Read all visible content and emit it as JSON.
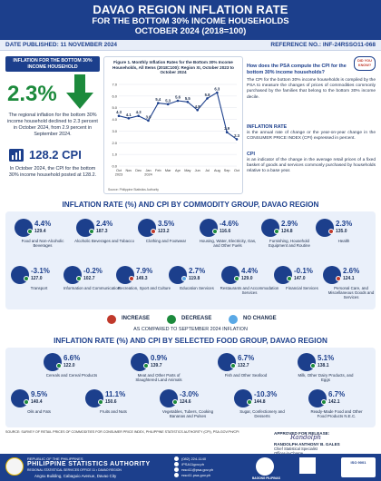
{
  "header": {
    "title": "DAVAO REGION INFLATION RATE",
    "subtitle": "FOR THE BOTTOM 30% INCOME HOUSEHOLDS",
    "period": "OCTOBER 2024 (2018=100)"
  },
  "meta": {
    "date_published": "DATE PUBLISHED: 11 NOVEMBER 2024",
    "reference_no": "REFERENCE NO.: INF-24RSSO11-068"
  },
  "summary": {
    "badge": "INFLATION FOR THE BOTTOM 30% INCOME HOUSEHOLD",
    "rate": "2.3%",
    "rate_desc": "The regional inflation for the bottom 30% income household declined to 2.3 percent in October 2024, from 2.9 percent in September 2024.",
    "cpi": "128.2 CPI",
    "cpi_desc": "In October 2024, the CPI for the bottom 30% income household posted at 128.2."
  },
  "chart_data": {
    "type": "line",
    "title": "Figure 1. Monthly Inflation Rates for the Bottom 30% Income Households, All Items (2018=100): Region XI, October 2023 to October 2024",
    "x": [
      "Oct 2023",
      "Nov",
      "Dec",
      "Jan 2024",
      "Feb",
      "Mar",
      "Apr",
      "May",
      "Jun",
      "Jul",
      "Aug",
      "Sep",
      "Oct"
    ],
    "x_ticks": [
      "Oct\n2023",
      "Nov",
      "Dec",
      "Jan\n2024",
      "Feb",
      "Mar",
      "Apr",
      "May",
      "Jun",
      "Jul",
      "Aug",
      "Sep",
      "Oct"
    ],
    "values": [
      4.3,
      4.1,
      4.3,
      3.9,
      5.4,
      5.3,
      5.6,
      5.5,
      4.8,
      5.8,
      6.3,
      2.9,
      2.3
    ],
    "labels": [
      "4.3",
      "4.1",
      "4.3",
      "3.9",
      "5.4",
      "5.3",
      "5.6",
      "5.5",
      "4.8",
      "5.8",
      "6.3",
      "2.9",
      "2.3"
    ],
    "ylim": [
      0,
      7
    ],
    "yticks": [
      "0.0",
      "1.0",
      "2.0",
      "3.0",
      "4.0",
      "5.0",
      "6.0",
      "7.0"
    ],
    "grid": true,
    "color": "#1c3f8c",
    "source": "Source: Philippine Statistics Authority"
  },
  "info": {
    "bubble": "DID YOU KNOW?",
    "question": "How does the PSA compute the CPI for the bottom 30% income households?",
    "answer": "The CPI for the bottom 30% income households is compiled by the PSA to measure the changes of prices of commodities commonly purchased by the families that belong to the bottom 30% income decile.",
    "inflation_head": "INFLATION RATE",
    "inflation_text": "is the annual rate of change or the year-on-year change in the CONSUMER PRICE INDEX (CPI) expressed in percent.",
    "cpi_head": "CPI",
    "cpi_text": "is an indicator of the change in the average retail prices of a fixed basket of goods and services commonly purchased by households relative to a base year."
  },
  "commodity_section": {
    "title": "INFLATION RATE (%) AND CPI BY COMMODITY GROUP, DAVAO REGION",
    "items": [
      {
        "label": "Food and Non-Alcoholic Beverages",
        "rate": "4.4%",
        "cpi": "129.4",
        "status": "decrease",
        "icon": "food-icon"
      },
      {
        "label": "Alcoholic Beverages and Tobacco",
        "rate": "2.4%",
        "cpi": "187.3",
        "status": "decrease",
        "icon": "bottle-icon"
      },
      {
        "label": "Clothing and Footwear",
        "rate": "3.5%",
        "cpi": "123.2",
        "status": "increase",
        "icon": "shirt-icon"
      },
      {
        "label": "Housing, Water, Electricity, Gas, and Other Fuels",
        "rate": "-4.6%",
        "cpi": "116.6",
        "status": "decrease",
        "icon": "house-icon"
      },
      {
        "label": "Furnishing, Household Equipment and Routine",
        "rate": "2.9%",
        "cpi": "124.8",
        "status": "decrease",
        "icon": "sofa-icon"
      },
      {
        "label": "Health",
        "rate": "2.3%",
        "cpi": "135.0",
        "status": "increase",
        "icon": "health-icon"
      },
      {
        "label": "Transport",
        "rate": "-3.1%",
        "cpi": "127.0",
        "status": "decrease",
        "icon": "bus-icon"
      },
      {
        "label": "Information and Communication",
        "rate": "-0.2%",
        "cpi": "102.7",
        "status": "decrease",
        "icon": "phone-icon"
      },
      {
        "label": "Recreation, Sport and Culture",
        "rate": "7.9%",
        "cpi": "149.3",
        "status": "increase",
        "icon": "ball-icon"
      },
      {
        "label": "Education Services",
        "rate": "2.7%",
        "cpi": "119.8",
        "status": "no-change",
        "icon": "school-icon"
      },
      {
        "label": "Restaurants and Accommodation Services",
        "rate": "4.4%",
        "cpi": "129.0",
        "status": "decrease",
        "icon": "restaurant-icon"
      },
      {
        "label": "Financial Services",
        "rate": "-0.1%",
        "cpi": "147.0",
        "status": "decrease",
        "icon": "finance-icon"
      },
      {
        "label": "Personal Care, and Miscellaneous Goods and Services",
        "rate": "2.6%",
        "cpi": "124.1",
        "status": "increase",
        "icon": "personal-care-icon"
      }
    ]
  },
  "legend": {
    "increase": "INCREASE",
    "decrease": "DECREASE",
    "no_change": "NO CHANGE",
    "compare": "AS COMPARED TO SEPTEMBER 2024 INFLATION",
    "colors": {
      "increase": "#c0392b",
      "decrease": "#1c8a3c",
      "no_change": "#5aa9e6"
    }
  },
  "food_section": {
    "title": "INFLATION RATE (%) AND CPI BY SELECTED FOOD GROUP, DAVAO REGION",
    "items": [
      {
        "label": "Cereals and Cereal Products",
        "rate": "6.6%",
        "cpi": "122.0",
        "status": "decrease",
        "icon": "rice-icon"
      },
      {
        "label": "Meat and Other Parts of Slaughtered Land Animals",
        "rate": "0.9%",
        "cpi": "139.7",
        "status": "decrease",
        "icon": "meat-icon"
      },
      {
        "label": "Fish and Other Seafood",
        "rate": "6.7%",
        "cpi": "132.7",
        "status": "decrease",
        "icon": "fish-icon"
      },
      {
        "label": "Milk, Other Dairy Products, and Eggs",
        "rate": "5.1%",
        "cpi": "138.1",
        "status": "decrease",
        "icon": "milk-icon"
      },
      {
        "label": "Oils and Fats",
        "rate": "9.5%",
        "cpi": "140.4",
        "status": "decrease",
        "icon": "oil-icon"
      },
      {
        "label": "Fruits and Nuts",
        "rate": "11.1%",
        "cpi": "150.6",
        "status": "decrease",
        "icon": "fruit-icon"
      },
      {
        "label": "Vegetables, Tubers, Cooking Bananas and Pulses",
        "rate": "-3.0%",
        "cpi": "124.6",
        "status": "decrease",
        "icon": "vegetable-icon"
      },
      {
        "label": "Sugar, Confectionery and Desserts",
        "rate": "-10.3%",
        "cpi": "144.8",
        "status": "decrease",
        "icon": "sugar-icon"
      },
      {
        "label": "Ready-Made Food and Other Food Products N.E.C.",
        "rate": "6.7%",
        "cpi": "142.1",
        "status": "decrease",
        "icon": "ready-food-icon"
      }
    ]
  },
  "source_note": "SOURCE: SURVEY OF RETAIL PRICES OF COMMODITIES FOR CONSUMER PRICE INDEX, PHILIPPINE STATISTICS AUTHORITY (CPI), PSA.GOV.PH/CPI",
  "approval": {
    "heading": "APPROVED FOR RELEASE:",
    "signature": "Randolph",
    "name": "RANDOLPH ANTHONY B. GALES",
    "position1": "Chief Statistical Specialist",
    "position2": "Officer-in-Charge",
    "position3": "Regional Statistical Services Office 11"
  },
  "footer": {
    "republic": "REPUBLIC OF THE PHILIPPINES",
    "agency": "PHILIPPINE STATISTICS AUTHORITY",
    "office": "REGIONAL STATISTICAL SERVICES OFFICE 11 • DAVAO REGION",
    "address": "Angsu Building, Cabaguio Avenue, Davao City",
    "phone": "(082) 224-1140",
    "facebook": "/PSA11gov.ph",
    "email": "rsso11@psa.gov.ph",
    "website": "rsso11.psa.gov.ph",
    "bagong_pilipinas": "BAGONG PILIPINAS",
    "iso": "ISO 9001"
  }
}
